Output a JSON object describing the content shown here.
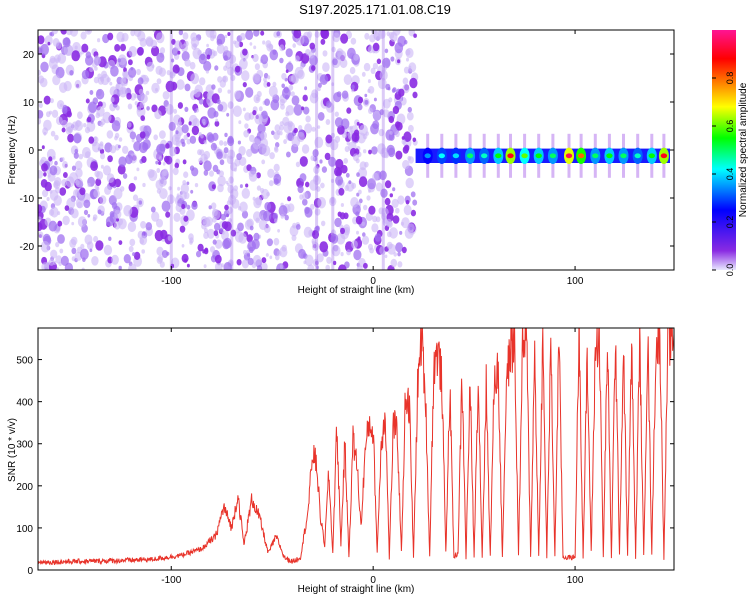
{
  "title": "S197.2025.171.01.08.C19",
  "chart_data": [
    {
      "type": "heatmap",
      "title": "S197.2025.171.01.08.C19",
      "xlabel": "Height of straight line (km)",
      "ylabel": "Frequency (Hz)",
      "xlim": [
        -166,
        149
      ],
      "ylim": [
        -25,
        25
      ],
      "x_ticks": [
        -100,
        0,
        100
      ],
      "x_tick_labels": [
        "-100",
        "0",
        "100"
      ],
      "y_ticks": [
        -20,
        -10,
        0,
        10,
        20
      ],
      "y_tick_labels": [
        "-20",
        "-10",
        "0",
        "10",
        "20"
      ],
      "colorbar": {
        "label": "Normalized spectral amplitude",
        "range": [
          0,
          1
        ],
        "ticks": [
          0,
          0.2,
          0.4,
          0.6,
          0.8
        ],
        "tick_labels": [
          "0.0",
          "0.2",
          "0.4",
          "0.6",
          "0.8"
        ],
        "colormap": [
          "#e8e8ff",
          "#8a2be2",
          "#0000ff",
          "#00ffff",
          "#00ff00",
          "#ffff00",
          "#ff8000",
          "#ff0000",
          "#ff1493"
        ]
      },
      "noise_region": {
        "x_range": [
          -166,
          21
        ],
        "y_range": [
          -25,
          25
        ],
        "typical_amplitude": 0.1
      },
      "signal_band": {
        "x_range": [
          21,
          147
        ],
        "center_frequency": -1.2,
        "bandwidth": 3,
        "peaks": [
          {
            "x": 27,
            "amplitude": 0.35
          },
          {
            "x": 34,
            "amplitude": 0.42
          },
          {
            "x": 41,
            "amplitude": 0.4
          },
          {
            "x": 48,
            "amplitude": 0.5
          },
          {
            "x": 55,
            "amplitude": 0.45
          },
          {
            "x": 62,
            "amplitude": 0.55
          },
          {
            "x": 68,
            "amplitude": 0.9
          },
          {
            "x": 75,
            "amplitude": 0.6
          },
          {
            "x": 82,
            "amplitude": 0.55
          },
          {
            "x": 89,
            "amplitude": 0.5
          },
          {
            "x": 97,
            "amplitude": 0.95
          },
          {
            "x": 103,
            "amplitude": 0.8
          },
          {
            "x": 110,
            "amplitude": 0.5
          },
          {
            "x": 117,
            "amplitude": 0.55
          },
          {
            "x": 124,
            "amplitude": 0.5
          },
          {
            "x": 131,
            "amplitude": 0.45
          },
          {
            "x": 138,
            "amplitude": 0.55
          },
          {
            "x": 144,
            "amplitude": 0.9
          }
        ]
      },
      "grid": false,
      "legend": "colorbar-right"
    },
    {
      "type": "line",
      "xlabel": "Height of straight line (km)",
      "ylabel": "SNR (10 * v/v)",
      "xlim": [
        -166,
        149
      ],
      "ylim": [
        0,
        575
      ],
      "x_ticks": [
        -100,
        0,
        100
      ],
      "x_tick_labels": [
        "-100",
        "0",
        "100"
      ],
      "y_ticks": [
        0,
        100,
        200,
        300,
        400,
        500
      ],
      "y_tick_labels": [
        "0",
        "100",
        "200",
        "300",
        "400",
        "500"
      ],
      "color": "#e8332a",
      "grid": false,
      "series": [
        {
          "x": [
            -166,
            -150,
            -130,
            -110,
            -95,
            -85,
            -78,
            -74,
            -70,
            -67,
            -64,
            -60,
            -56,
            -52,
            -48,
            -44,
            -40,
            -36,
            -32,
            -30,
            -28,
            -26,
            -24,
            -22,
            -20,
            -18,
            -16,
            -14,
            -12,
            -10,
            -8,
            -6,
            -4,
            -2,
            0,
            2,
            4,
            6,
            8,
            10,
            12,
            14,
            16,
            18,
            20,
            22,
            24,
            26,
            28,
            30,
            32,
            34,
            36,
            38,
            40,
            42,
            44,
            46,
            48,
            50,
            52,
            54,
            56,
            58,
            60,
            62,
            64,
            66,
            68,
            70,
            72,
            74,
            76,
            78,
            80,
            82,
            84,
            86,
            88,
            90,
            92,
            94,
            96,
            98,
            100,
            102,
            104,
            106,
            108,
            110,
            112,
            114,
            116,
            118,
            120,
            122,
            124,
            126,
            128,
            130,
            132,
            134,
            136,
            138,
            140,
            142,
            144,
            146,
            149
          ],
          "y": [
            18,
            20,
            22,
            25,
            35,
            50,
            80,
            150,
            100,
            180,
            60,
            170,
            120,
            40,
            80,
            30,
            20,
            30,
            150,
            280,
            250,
            120,
            60,
            230,
            40,
            340,
            60,
            300,
            30,
            310,
            250,
            100,
            280,
            350,
            330,
            40,
            300,
            380,
            30,
            350,
            320,
            40,
            420,
            380,
            30,
            430,
            560,
            400,
            30,
            480,
            520,
            450,
            40,
            430,
            30,
            40,
            460,
            30,
            440,
            30,
            470,
            30,
            440,
            30,
            460,
            470,
            30,
            450,
            520,
            540,
            40,
            530,
            550,
            30,
            520,
            30,
            540,
            30,
            530,
            30,
            560,
            30,
            30,
            30,
            30,
            580,
            30,
            500,
            40,
            520,
            560,
            30,
            540,
            30,
            560,
            40,
            530,
            30,
            540,
            30,
            550,
            30,
            560,
            40,
            520,
            560,
            30,
            540,
            560
          ]
        }
      ]
    }
  ]
}
